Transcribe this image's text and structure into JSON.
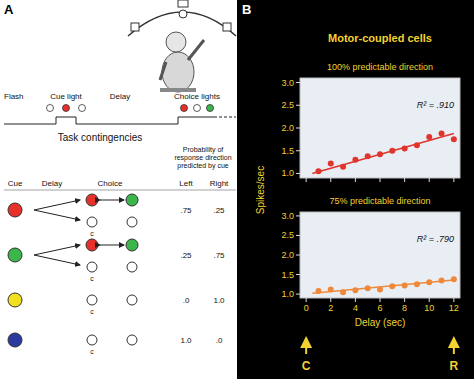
{
  "panel_a": {
    "label": "A",
    "timeline": [
      "Flash",
      "Cue light",
      "Delay",
      "Choice lights"
    ],
    "contingencies": {
      "title": "Task contingencies",
      "columns": [
        "Cue",
        "Delay",
        "Choice"
      ],
      "probability_header": "Probability of response direction predicted by cue",
      "directions": [
        "Left",
        "Right"
      ],
      "rows": [
        {
          "cue_color": "#e8302a",
          "choices": [
            "#e8302a",
            "#3cb54a"
          ],
          "choice_mark": "c",
          "left": ".75",
          "right": ".25"
        },
        {
          "cue_color": "#3cb54a",
          "choices": [
            "#e8302a",
            "#3cb54a"
          ],
          "choice_mark": "c",
          "left": ".25",
          "right": ".75"
        },
        {
          "cue_color": "#f2e01e",
          "choices": [],
          "choice_mark": "c",
          "left": ".0",
          "right": "1.0"
        },
        {
          "cue_color": "#2a3aa0",
          "choices": [],
          "choice_mark": "c",
          "left": "1.0",
          "right": ".0"
        }
      ]
    }
  },
  "panel_b": {
    "label": "B",
    "title": "Motor-coupled cells",
    "y_label": "Spikes/sec",
    "x_label": "Delay (sec)",
    "markers": [
      {
        "label": "C",
        "x": 0
      },
      {
        "label": "R",
        "x": 12
      }
    ]
  },
  "chart_data": [
    {
      "type": "scatter",
      "subtitle": "100% predictable direction",
      "annotation": "R² = .910",
      "xlim": [
        -0.5,
        12.5
      ],
      "xticks": [
        0,
        2,
        4,
        6,
        8,
        10,
        12
      ],
      "ylim": [
        0.9,
        3.1
      ],
      "yticks": [
        {
          "value": 1,
          "label": "1.0"
        },
        {
          "value": 1.5,
          "label": "1.5"
        },
        {
          "value": 2,
          "label": "2.0"
        },
        {
          "value": 2.5,
          "label": "2.5"
        },
        {
          "value": 3,
          "label": "3.0"
        }
      ],
      "tick_labels": "y",
      "series": [
        {
          "color": "#e0342c",
          "marker": "circle",
          "x": [
            1,
            2,
            3,
            4,
            5,
            6,
            7,
            8,
            9,
            10,
            11,
            12
          ],
          "values": [
            1.05,
            1.22,
            1.15,
            1.3,
            1.38,
            1.42,
            1.5,
            1.55,
            1.62,
            1.8,
            1.88,
            1.75
          ]
        },
        {
          "type": "line",
          "color": "#e0342c",
          "x": [
            0.5,
            12
          ],
          "values": [
            1.0,
            1.88
          ]
        }
      ]
    },
    {
      "type": "scatter",
      "subtitle": "75% predictable direction",
      "annotation": "R² = .790",
      "xlim": [
        -0.5,
        12.5
      ],
      "xticks": [
        0,
        2,
        4,
        6,
        8,
        10,
        12
      ],
      "ylim": [
        0.9,
        3.1
      ],
      "yticks": [
        {
          "value": 1,
          "label": "1.0"
        },
        {
          "value": 1.5,
          "label": "1.5"
        },
        {
          "value": 2,
          "label": "2.0"
        },
        {
          "value": 2.5,
          "label": "2.5"
        },
        {
          "value": 3,
          "label": "3.0"
        }
      ],
      "tick_labels": true,
      "series": [
        {
          "color": "#f0883a",
          "marker": "circle",
          "x": [
            1,
            2,
            3,
            4,
            5,
            6,
            7,
            8,
            9,
            10,
            11,
            12
          ],
          "values": [
            1.08,
            1.12,
            1.05,
            1.1,
            1.15,
            1.12,
            1.2,
            1.22,
            1.25,
            1.3,
            1.35,
            1.38
          ]
        },
        {
          "type": "line",
          "color": "#f0883a",
          "x": [
            0.5,
            12
          ],
          "values": [
            1.02,
            1.36
          ]
        }
      ]
    }
  ]
}
